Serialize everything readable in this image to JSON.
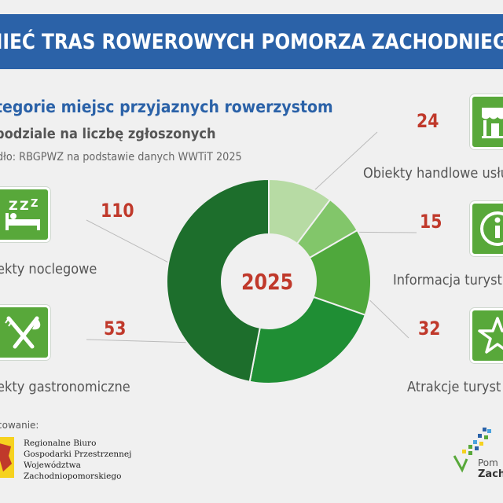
{
  "header": {
    "title": "NIEĆ TRAS ROWEROWYCH POMORZA ZACHODNIEGO"
  },
  "chart_data": {
    "type": "pie",
    "title": "tegorie miejsc przyjaznych rowerzystom",
    "subtitle": "podziale na liczbę zgłoszonych",
    "source": "dło: RBGPWZ na podstawie danych WWTiT 2025",
    "center_label": "2025",
    "categories": [
      "Obiekty handlowe usłu",
      "Informacja turyst",
      "Atrakcje turyst",
      "ekty gastronomiczne",
      "ekty noclegowe"
    ],
    "values": [
      24,
      15,
      32,
      53,
      110
    ],
    "colors": [
      "#b7dba4",
      "#82c66a",
      "#4fa83c",
      "#1f8e34",
      "#1d6e2c"
    ]
  },
  "icons": {
    "sleep": "sleep-zzz-bed-icon",
    "food": "fork-knife-icon",
    "shop": "shop-storefront-icon",
    "info": "info-icon",
    "star": "star-icon"
  },
  "footer": {
    "label": "cowanie:",
    "org_lines": [
      "Regionalne Biuro",
      "Gospodarki Przestrzennej",
      "Województwa",
      "Zachodniopomorskiego"
    ],
    "logo_line1": "Pom",
    "logo_line2": "Zachod"
  }
}
